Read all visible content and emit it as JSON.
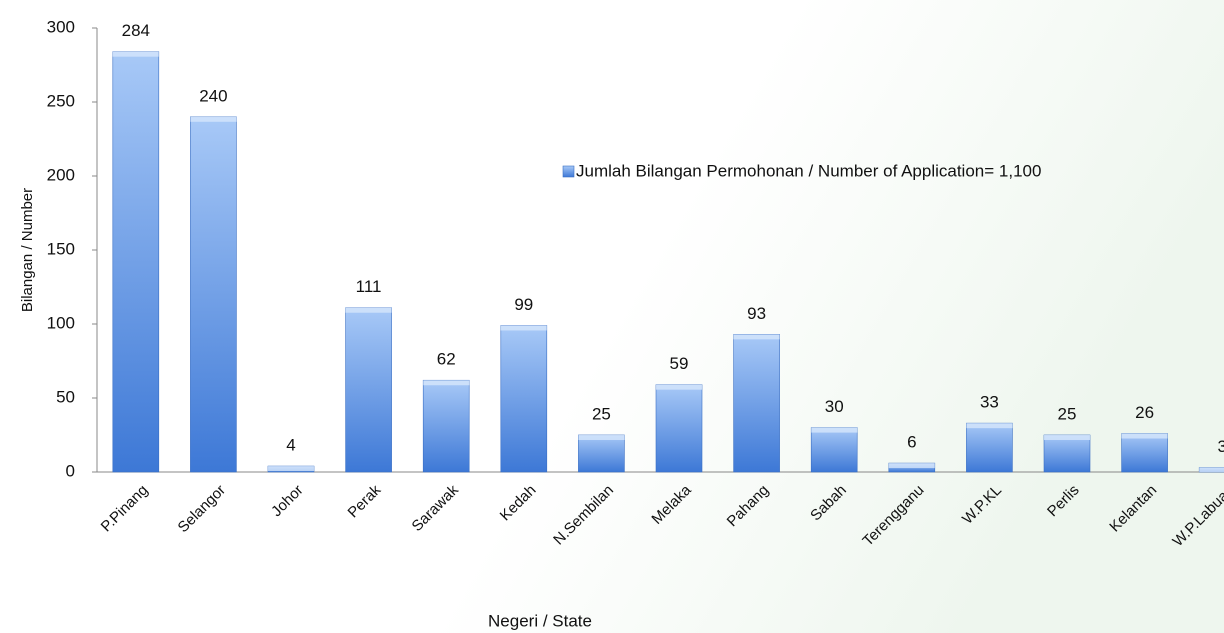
{
  "chart_data": {
    "type": "bar",
    "categories": [
      "P.Pinang",
      "Selangor",
      "Johor",
      "Perak",
      "Sarawak",
      "Kedah",
      "N.Sembilan",
      "Melaka",
      "Pahang",
      "Sabah",
      "Terengganu",
      "W.P.KL",
      "Perlis",
      "Kelantan",
      "W.P.Labuan"
    ],
    "series": [
      {
        "name": "Jumlah Bilangan Permohonan / Number of Application= 1,100",
        "color": "#4a86dc",
        "values": [
          284,
          240,
          4,
          111,
          62,
          99,
          25,
          59,
          93,
          30,
          6,
          33,
          25,
          26,
          3
        ]
      }
    ],
    "ylim": [
      0,
      300
    ],
    "yticks": [
      0,
      50,
      100,
      150,
      200,
      250,
      300
    ],
    "y_label": "Bilangan / Number",
    "x_label": "Negeri / State",
    "grid": false,
    "legend": "upper right"
  }
}
